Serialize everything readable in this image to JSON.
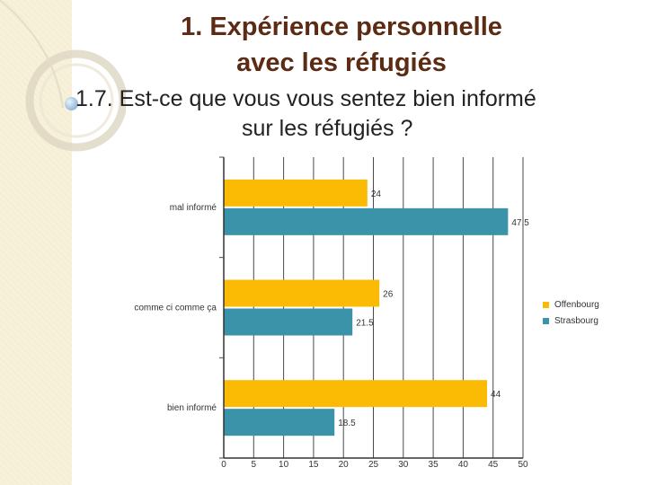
{
  "title_line1": "1. Expérience personnelle",
  "title_line2": "avec les réfugiés",
  "question_line1": "1.7.  Est-ce que vous vous sentez bien informé",
  "question_line2": "sur les réfugiés ?",
  "colors": {
    "offenbourg": "#fbbb05",
    "strasbourg": "#3a93a8",
    "title": "#5b2b14"
  },
  "chart_data": {
    "type": "bar",
    "orientation": "horizontal",
    "categories": [
      "mal informé",
      "comme ci comme ça",
      "bien informé"
    ],
    "series": [
      {
        "name": "Offenbourg",
        "values": [
          24,
          26,
          44
        ]
      },
      {
        "name": "Strasbourg",
        "values": [
          47.5,
          21.5,
          18.5
        ]
      }
    ],
    "xlim": [
      0,
      50
    ],
    "xticks": [
      "0",
      "5",
      "10",
      "15",
      "20",
      "25",
      "30",
      "35",
      "40",
      "45",
      "50"
    ],
    "value_labels": [
      [
        "24",
        "26",
        "44"
      ],
      [
        "47.5",
        "21.5",
        "18.5"
      ]
    ],
    "grid": true,
    "legend": "right"
  }
}
